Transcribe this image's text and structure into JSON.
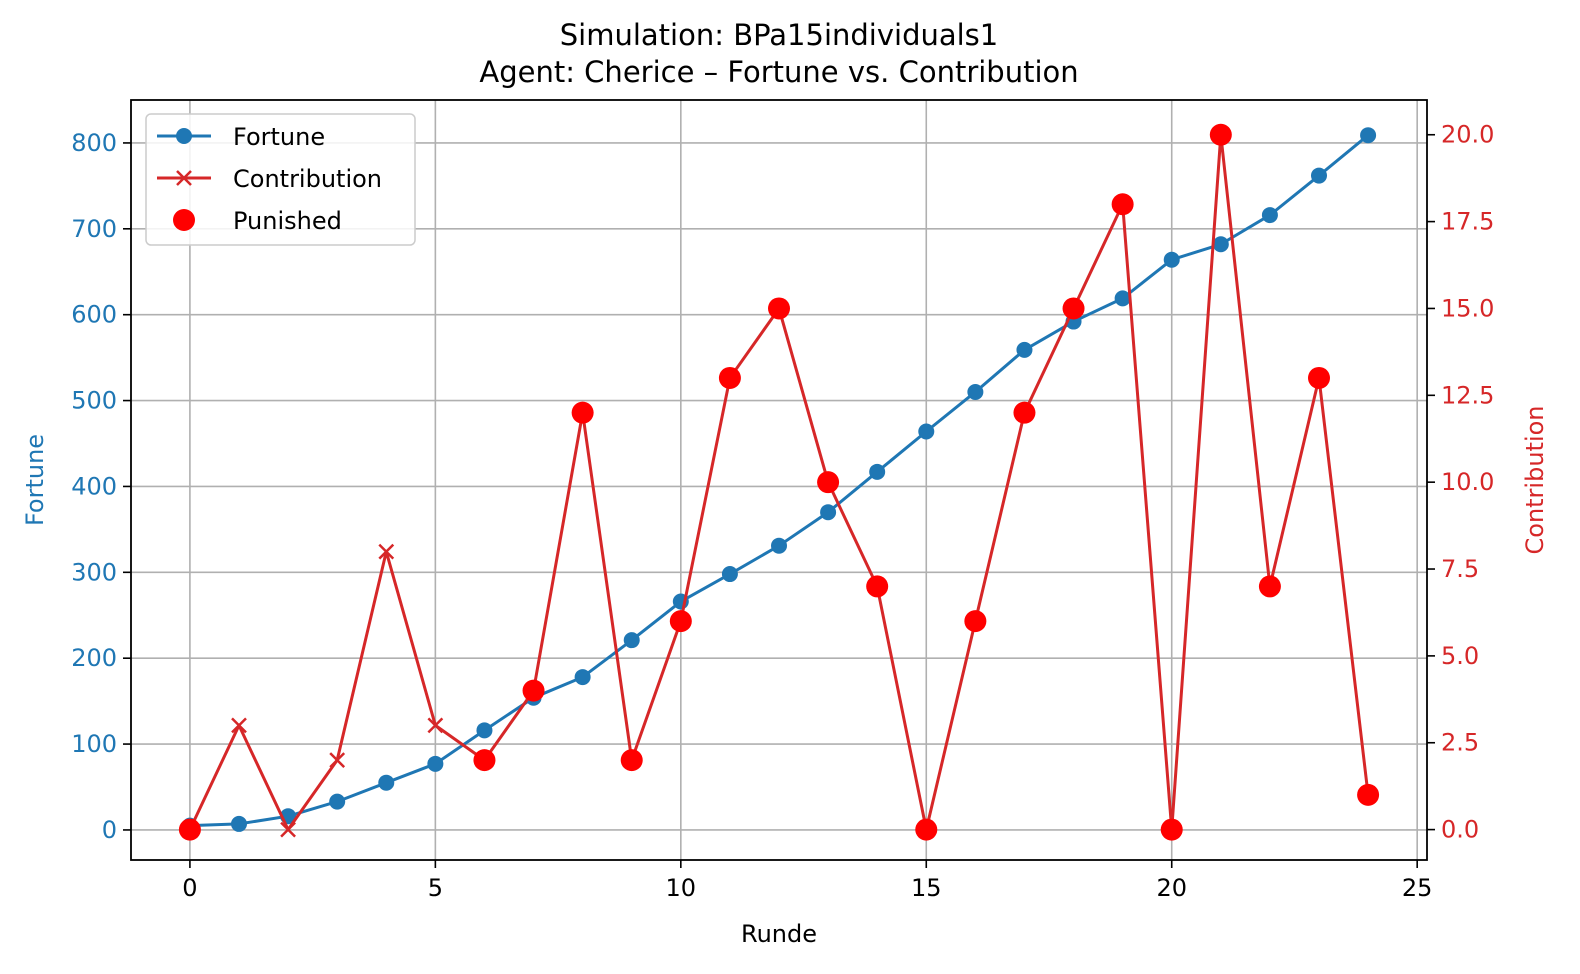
{
  "chart_data": {
    "type": "line",
    "title_line1": "Simulation: BPa15individuals1",
    "title_line2": "Agent: Cherice – Fortune vs. Contribution",
    "xlabel": "Runde",
    "ylabel_left": "Fortune",
    "ylabel_right": "Contribution",
    "xlim": [
      -1.2,
      25.2
    ],
    "ylim_left": [
      -35,
      850
    ],
    "ylim_right": [
      -0.875,
      21.0
    ],
    "x_ticks": [
      0,
      5,
      10,
      15,
      20,
      25
    ],
    "y_ticks_left": [
      0,
      100,
      200,
      300,
      400,
      500,
      600,
      700,
      800
    ],
    "y_ticks_right": [
      "0.0",
      "2.5",
      "5.0",
      "7.5",
      "10.0",
      "12.5",
      "15.0",
      "17.5",
      "20.0"
    ],
    "grid": true,
    "legend_position": "top-left",
    "x": [
      0,
      1,
      2,
      3,
      4,
      5,
      6,
      7,
      8,
      9,
      10,
      11,
      12,
      13,
      14,
      15,
      16,
      17,
      18,
      19,
      20,
      21,
      22,
      23,
      24
    ],
    "series": [
      {
        "name": "Fortune",
        "axis": "left",
        "color": "#1f77b4",
        "marker": "circle",
        "values": [
          5,
          7,
          16,
          33,
          55,
          77,
          116,
          154,
          178,
          221,
          266,
          298,
          331,
          370,
          417,
          464,
          510,
          559,
          592,
          619,
          664,
          682,
          716,
          762,
          809
        ]
      },
      {
        "name": "Contribution",
        "axis": "right",
        "color": "#d62728",
        "marker": "x",
        "values": [
          0,
          3,
          0,
          2,
          8,
          3,
          2,
          4,
          12,
          2,
          6,
          13,
          15,
          10,
          7,
          0,
          6,
          12,
          15,
          18,
          0,
          20,
          7,
          13,
          1
        ]
      },
      {
        "name": "Punished",
        "axis": "right",
        "color": "#ff0000",
        "marker": "dot",
        "x": [
          0,
          6,
          7,
          8,
          9,
          10,
          11,
          12,
          13,
          14,
          15,
          16,
          17,
          18,
          19,
          20,
          21,
          22,
          23,
          24
        ],
        "values": [
          0,
          2,
          4,
          12,
          2,
          6,
          13,
          15,
          10,
          7,
          0,
          6,
          12,
          15,
          18,
          0,
          20,
          7,
          13,
          1
        ]
      }
    ]
  }
}
